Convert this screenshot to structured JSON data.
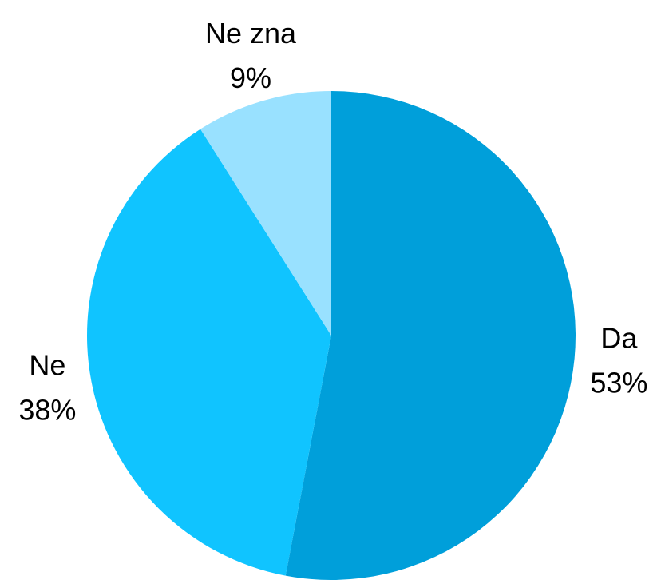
{
  "chart_data": {
    "type": "pie",
    "categories": [
      "Da",
      "Ne",
      "Ne zna"
    ],
    "values": [
      53,
      38,
      9
    ],
    "value_labels": [
      "53%",
      "38%",
      "9%"
    ],
    "colors": [
      "#009fda",
      "#10c4ff",
      "#99e1ff"
    ]
  }
}
